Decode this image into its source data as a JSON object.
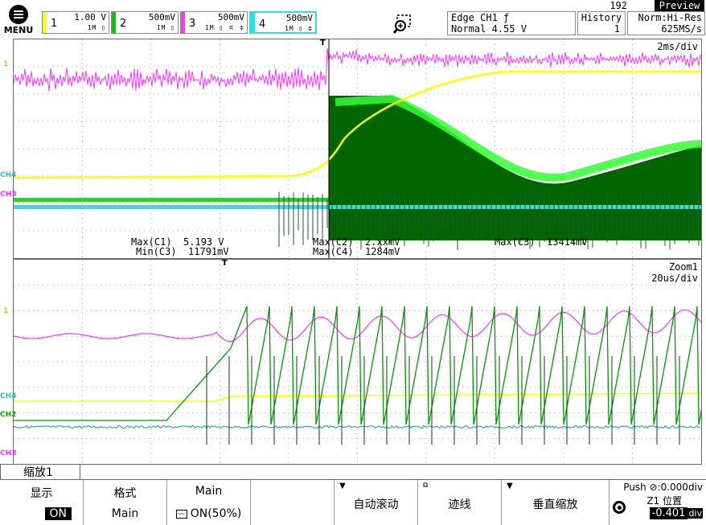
{
  "header": {
    "menu_label": "MENU",
    "record_count": "192",
    "preview_label": "Preview"
  },
  "channels": [
    {
      "num": "1",
      "scale": "1.00 V",
      "icons": "1M ▯",
      "color": "#ffff00"
    },
    {
      "num": "2",
      "scale": "500mV",
      "icons": "1M ▯",
      "color": "#00cc00"
    },
    {
      "num": "3",
      "scale": "500mV",
      "icons": "1M ▯ ⚟ ≑",
      "color": "#ff33ff"
    },
    {
      "num": "4",
      "scale": "500mV",
      "icons": "1M ▯ ≑",
      "color": "#33dddd"
    }
  ],
  "trigger": {
    "mode": "Edge CH1 ƒ",
    "level": "Normal 4.55 V"
  },
  "history": {
    "label": "History",
    "value": "1"
  },
  "acquisition": {
    "mode": "Norm:Hi-Res",
    "rate": "625MS/s"
  },
  "main_window": {
    "timebase": "2ms/div",
    "measurements": {
      "max_c1": "Max(C1)  5.193 V",
      "min_c3": "Min(C3)  11791mV",
      "max_c2": "Max(C2)  2.xxmV",
      "max_c4": "Max(C4)  1284mV",
      "max_c3": "Max(C3)  13414mV"
    }
  },
  "zoom_window": {
    "name": "Zoom1",
    "timebase": "20us/div"
  },
  "markers": {
    "ch1": "1",
    "ch2": "CH2",
    "ch3": "CH3",
    "ch4": "CH4",
    "trig": "T"
  },
  "softkeys": {
    "zoom_tab": "缩放1",
    "display": {
      "title": "显示",
      "value": "ON"
    },
    "format": {
      "title": "格式",
      "value": "Main"
    },
    "main": {
      "title": "Main",
      "value": "ON(50%)"
    },
    "auto_scroll": "自动滚动",
    "trace": "迹线",
    "vert_zoom": "垂直缩放",
    "position": {
      "push": "Push ⊘:0.000div",
      "label": "Z1  位置",
      "value": "-0.401",
      "unit": "div"
    }
  },
  "colors": {
    "ch1": "#ffff00",
    "ch2": "#00cc00",
    "ch3": "#ff33ff",
    "ch4": "#33dddd",
    "ch2_dark": "#006600"
  }
}
